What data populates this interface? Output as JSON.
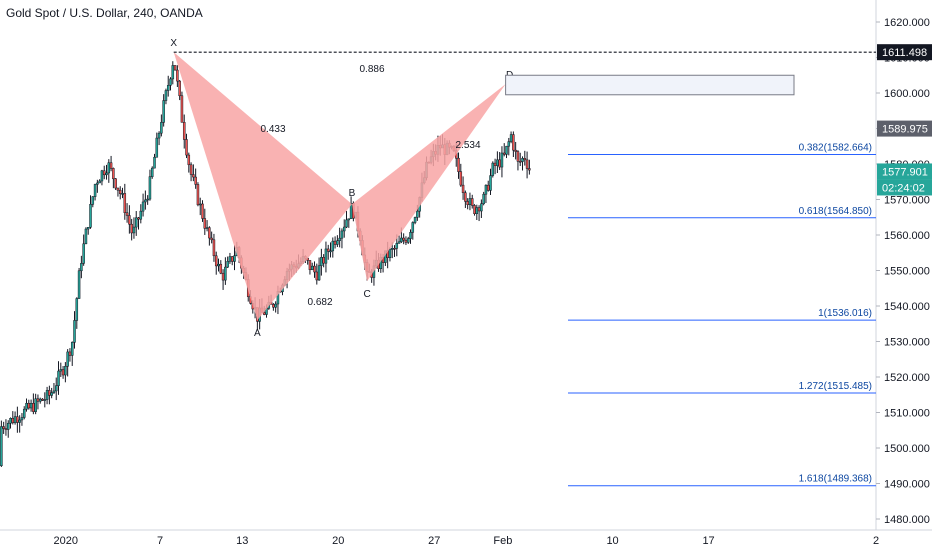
{
  "chart_data": {
    "type": "candlestick",
    "title": "Gold Spot / U.S. Dollar, 240, OANDA",
    "x_ticks": [
      "2020",
      "7",
      "13",
      "20",
      "27",
      "Feb",
      "10",
      "17",
      "2"
    ],
    "y_ticks": [
      "1620.000",
      "1610.000",
      "1600.000",
      "1590.000",
      "1580.000",
      "1570.000",
      "1560.000",
      "1550.000",
      "1540.000",
      "1530.000",
      "1520.000",
      "1510.000",
      "1500.000",
      "1490.000",
      "1480.000"
    ],
    "ylim": [
      1477,
      1624
    ],
    "price_labels": {
      "level_1611": "1611.498",
      "last_close": "1589.975",
      "current": "1577.901",
      "countdown": "02:24:02"
    },
    "harmonic_pattern": {
      "points": [
        {
          "label": "X",
          "date": "Jan 8",
          "price": 1611.5
        },
        {
          "label": "A",
          "date": "Jan 14",
          "price": 1536.0
        },
        {
          "label": "B",
          "date": "Jan 21",
          "price": 1568.7
        },
        {
          "label": "C",
          "date": "Jan 22",
          "price": 1547.0
        },
        {
          "label": "D",
          "date": "Feb 1",
          "price": 1602.5
        }
      ],
      "ratios": [
        "0.886",
        "0.433",
        "0.682",
        "2.534"
      ]
    },
    "fib_levels": [
      {
        "label": "0.382(1582.664)",
        "price": 1582.664
      },
      {
        "label": "0.618(1564.850)",
        "price": 1564.85
      },
      {
        "label": "1(1536.016)",
        "price": 1536.016
      },
      {
        "label": "1.272(1515.485)",
        "price": 1515.485
      },
      {
        "label": "1.618(1489.368)",
        "price": 1489.368
      }
    ],
    "target_zone": {
      "top": 1605,
      "bottom": 1599.5
    },
    "grid": false,
    "colors": {
      "up": "#26a69a",
      "down": "#ef5350",
      "pattern": "#f8a5a5",
      "fib": "#2962ff",
      "current_label": "#26a69a",
      "price_label": "#131722"
    }
  }
}
